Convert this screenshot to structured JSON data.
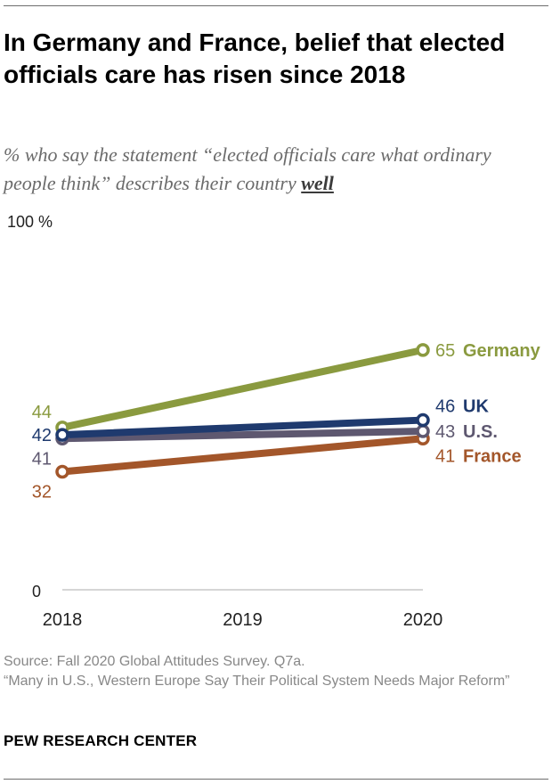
{
  "title": "In Germany and France, belief that elected officials care has risen since 2018",
  "subtitle": {
    "main": "% who say the statement “elected officials care what ordinary people think” describes their country ",
    "emphasis": "well"
  },
  "footer": {
    "source": "Source: Fall 2020 Global Attitudes Survey. Q7a.",
    "report": "“Many in U.S., Western Europe Say Their Political System Needs Major Reform”"
  },
  "brand": "PEW RESEARCH CENTER",
  "chart_data": {
    "type": "line",
    "title": "In Germany and France, belief that elected officials care has risen since 2018",
    "ylabel": "",
    "xlabel": "",
    "x": [
      "2018",
      "2019",
      "2020"
    ],
    "ylim": [
      0,
      100
    ],
    "y_tick_labels": {
      "top": "100 %",
      "bottom": "0"
    },
    "grid": false,
    "series": [
      {
        "name": "Germany",
        "x": [
          "2018",
          "2020"
        ],
        "values": [
          44,
          65
        ],
        "color": "#8a9a3f",
        "start_label": "44",
        "end_label": "65"
      },
      {
        "name": "U.S.",
        "x": [
          "2018",
          "2020"
        ],
        "values": [
          41,
          43
        ],
        "color": "#5e5870",
        "start_label": "41",
        "end_label": "43"
      },
      {
        "name": "UK",
        "x": [
          "2018",
          "2020"
        ],
        "values": [
          42,
          46
        ],
        "color": "#1f3a6e",
        "start_label": "42",
        "end_label": "46"
      },
      {
        "name": "France",
        "x": [
          "2018",
          "2020"
        ],
        "values": [
          32,
          41
        ],
        "color": "#a3562a",
        "start_label": "32",
        "end_label": "41"
      }
    ]
  }
}
